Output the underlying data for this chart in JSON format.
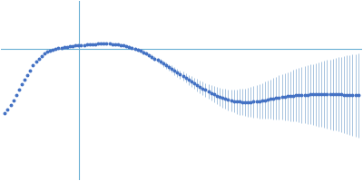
{
  "background_color": "#ffffff",
  "line_color": "#4472c4",
  "errorbar_color": "#a8c4e0",
  "ref_line_color": "#6aafd4",
  "ref_line_x": 0.115,
  "ref_line_y": 0.6,
  "x_values": [
    0.01,
    0.014,
    0.018,
    0.022,
    0.026,
    0.03,
    0.034,
    0.038,
    0.042,
    0.046,
    0.05,
    0.054,
    0.058,
    0.062,
    0.066,
    0.07,
    0.074,
    0.078,
    0.082,
    0.086,
    0.09,
    0.094,
    0.098,
    0.102,
    0.106,
    0.11,
    0.114,
    0.118,
    0.122,
    0.126,
    0.13,
    0.134,
    0.138,
    0.142,
    0.146,
    0.15,
    0.154,
    0.158,
    0.162,
    0.166,
    0.17,
    0.174,
    0.178,
    0.182,
    0.186,
    0.19,
    0.194,
    0.198,
    0.202,
    0.206,
    0.21,
    0.214,
    0.218,
    0.222,
    0.226,
    0.23,
    0.234,
    0.238,
    0.242,
    0.246,
    0.25,
    0.254,
    0.258,
    0.262,
    0.266,
    0.27,
    0.274,
    0.278,
    0.282,
    0.286,
    0.29,
    0.294,
    0.298,
    0.302,
    0.306,
    0.31,
    0.314,
    0.318,
    0.322,
    0.326,
    0.33,
    0.334,
    0.338,
    0.342,
    0.346,
    0.35,
    0.354,
    0.358,
    0.362,
    0.366,
    0.37,
    0.374,
    0.378,
    0.382,
    0.386,
    0.39,
    0.394,
    0.398,
    0.402,
    0.406,
    0.41,
    0.414,
    0.418,
    0.422,
    0.426,
    0.43,
    0.434,
    0.438,
    0.442,
    0.446,
    0.45,
    0.454,
    0.458,
    0.462,
    0.466,
    0.47,
    0.474,
    0.478,
    0.482,
    0.486,
    0.49,
    0.494,
    0.498,
    0.502,
    0.506,
    0.51
  ],
  "y_values": [
    0.06,
    0.09,
    0.13,
    0.17,
    0.21,
    0.26,
    0.3,
    0.34,
    0.38,
    0.42,
    0.46,
    0.49,
    0.52,
    0.54,
    0.56,
    0.575,
    0.585,
    0.594,
    0.6,
    0.605,
    0.61,
    0.614,
    0.618,
    0.622,
    0.626,
    0.628,
    0.63,
    0.632,
    0.634,
    0.636,
    0.638,
    0.64,
    0.641,
    0.642,
    0.643,
    0.643,
    0.643,
    0.642,
    0.64,
    0.638,
    0.636,
    0.633,
    0.629,
    0.624,
    0.618,
    0.611,
    0.603,
    0.594,
    0.584,
    0.573,
    0.56,
    0.547,
    0.533,
    0.519,
    0.505,
    0.49,
    0.475,
    0.46,
    0.445,
    0.43,
    0.415,
    0.4,
    0.385,
    0.37,
    0.355,
    0.34,
    0.325,
    0.31,
    0.296,
    0.282,
    0.268,
    0.255,
    0.242,
    0.23,
    0.218,
    0.207,
    0.197,
    0.188,
    0.18,
    0.173,
    0.167,
    0.162,
    0.158,
    0.155,
    0.153,
    0.152,
    0.152,
    0.153,
    0.155,
    0.158,
    0.161,
    0.165,
    0.169,
    0.174,
    0.178,
    0.183,
    0.187,
    0.191,
    0.195,
    0.198,
    0.201,
    0.204,
    0.207,
    0.209,
    0.211,
    0.213,
    0.214,
    0.215,
    0.216,
    0.217,
    0.217,
    0.218,
    0.218,
    0.218,
    0.218,
    0.218,
    0.218,
    0.218,
    0.217,
    0.216,
    0.215,
    0.214,
    0.213,
    0.212,
    0.211,
    0.21
  ],
  "yerr_values": [
    0.001,
    0.001,
    0.001,
    0.001,
    0.001,
    0.001,
    0.001,
    0.001,
    0.001,
    0.001,
    0.001,
    0.001,
    0.001,
    0.001,
    0.001,
    0.001,
    0.001,
    0.001,
    0.002,
    0.002,
    0.002,
    0.002,
    0.002,
    0.002,
    0.003,
    0.003,
    0.003,
    0.003,
    0.004,
    0.004,
    0.004,
    0.005,
    0.005,
    0.005,
    0.006,
    0.006,
    0.007,
    0.007,
    0.008,
    0.008,
    0.009,
    0.009,
    0.01,
    0.01,
    0.011,
    0.012,
    0.013,
    0.014,
    0.015,
    0.016,
    0.017,
    0.018,
    0.019,
    0.02,
    0.022,
    0.023,
    0.025,
    0.026,
    0.028,
    0.03,
    0.032,
    0.034,
    0.036,
    0.038,
    0.04,
    0.042,
    0.045,
    0.047,
    0.05,
    0.053,
    0.056,
    0.059,
    0.062,
    0.065,
    0.068,
    0.072,
    0.076,
    0.08,
    0.084,
    0.088,
    0.092,
    0.097,
    0.102,
    0.107,
    0.112,
    0.117,
    0.122,
    0.127,
    0.132,
    0.137,
    0.143,
    0.149,
    0.155,
    0.161,
    0.167,
    0.173,
    0.179,
    0.185,
    0.191,
    0.197,
    0.203,
    0.209,
    0.215,
    0.221,
    0.227,
    0.233,
    0.239,
    0.245,
    0.251,
    0.257,
    0.263,
    0.269,
    0.275,
    0.281,
    0.287,
    0.293,
    0.299,
    0.305,
    0.311,
    0.317,
    0.323,
    0.329,
    0.335,
    0.341,
    0.347,
    0.353
  ],
  "xlim": [
    0.005,
    0.515
  ],
  "ylim": [
    -0.5,
    1.0
  ],
  "figsize": [
    4.0,
    2.0
  ],
  "dpi": 100
}
